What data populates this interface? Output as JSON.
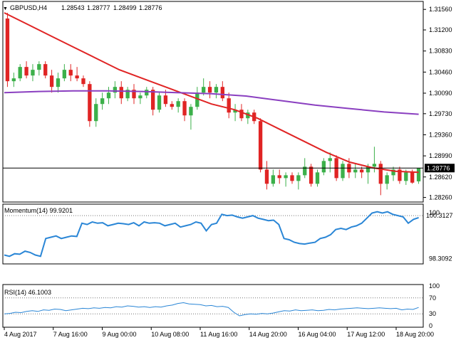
{
  "header": {
    "symbol": "GBPUSD,H4",
    "open": "1.28543",
    "high": "1.28777",
    "low": "1.28499",
    "close": "1.28776"
  },
  "colors": {
    "bull": "#3cb04a",
    "bear": "#e02424",
    "sma_fast": "#e02424",
    "sma_slow": "#8a3fc0",
    "indicator": "#2a86d6",
    "axis": "#000000",
    "grid_dotted": "#777777",
    "price_line": "#000000",
    "price_tag_bg": "#000000",
    "price_tag_text": "#ffffff"
  },
  "chart_data": [
    {
      "type": "candlestick",
      "title": "GBPUSD,H4",
      "x_ticks": [
        "4 Aug 2017",
        "7 Aug 16:00",
        "9 Aug 00:00",
        "10 Aug 08:00",
        "11 Aug 16:00",
        "14 Aug 20:00",
        "16 Aug 04:00",
        "17 Aug 12:00",
        "18 Aug 20:00"
      ],
      "y_ticks": [
        "1.31560",
        "1.31200",
        "1.30830",
        "1.30460",
        "1.30090",
        "1.29730",
        "1.29360",
        "1.28990",
        "1.28620",
        "1.28260"
      ],
      "ylim": [
        1.2818,
        1.317
      ],
      "current_price": "1.28776",
      "current_price_value": 1.28776,
      "ohlc": [
        [
          1.314,
          1.315,
          1.302,
          1.303
        ],
        [
          1.303,
          1.3045,
          1.302,
          1.3035
        ],
        [
          1.3035,
          1.306,
          1.303,
          1.3055
        ],
        [
          1.3055,
          1.3065,
          1.3035,
          1.304
        ],
        [
          1.304,
          1.306,
          1.303,
          1.305
        ],
        [
          1.305,
          1.3065,
          1.304,
          1.306
        ],
        [
          1.306,
          1.3065,
          1.3035,
          1.304
        ],
        [
          1.304,
          1.305,
          1.301,
          1.302
        ],
        [
          1.302,
          1.3045,
          1.301,
          1.3035
        ],
        [
          1.3035,
          1.306,
          1.303,
          1.305
        ],
        [
          1.305,
          1.306,
          1.303,
          1.304
        ],
        [
          1.304,
          1.3055,
          1.303,
          1.3035
        ],
        [
          1.3035,
          1.304,
          1.302,
          1.3025
        ],
        [
          1.3025,
          1.303,
          1.295,
          1.296
        ],
        [
          1.296,
          1.3,
          1.295,
          1.299
        ],
        [
          1.299,
          1.301,
          1.298,
          1.3
        ],
        [
          1.3,
          1.302,
          1.299,
          1.301
        ],
        [
          1.301,
          1.303,
          1.3,
          1.302
        ],
        [
          1.302,
          1.303,
          1.299,
          1.3
        ],
        [
          1.3,
          1.302,
          1.2995,
          1.3015
        ],
        [
          1.3015,
          1.3025,
          1.299,
          1.3
        ],
        [
          1.3,
          1.301,
          1.299,
          1.3005
        ],
        [
          1.3005,
          1.302,
          1.3,
          1.3015
        ],
        [
          1.3015,
          1.302,
          1.297,
          1.298
        ],
        [
          1.298,
          1.301,
          1.2975,
          1.3005
        ],
        [
          1.3005,
          1.3015,
          1.2985,
          1.299
        ],
        [
          1.299,
          1.2995,
          1.298,
          1.2985
        ],
        [
          1.2985,
          1.3,
          1.2975,
          1.2995
        ],
        [
          1.2995,
          1.3,
          1.296,
          1.297
        ],
        [
          1.297,
          1.299,
          1.2945,
          1.2985
        ],
        [
          1.2985,
          1.302,
          1.298,
          1.301
        ],
        [
          1.301,
          1.3035,
          1.3005,
          1.302
        ],
        [
          1.302,
          1.303,
          1.3,
          1.301
        ],
        [
          1.301,
          1.3025,
          1.3,
          1.302
        ],
        [
          1.302,
          1.303,
          1.2995,
          1.3
        ],
        [
          1.3,
          1.301,
          1.2965,
          1.2975
        ],
        [
          1.2975,
          1.299,
          1.296,
          1.298
        ],
        [
          1.298,
          1.299,
          1.296,
          1.2965
        ],
        [
          1.2965,
          1.298,
          1.2955,
          1.2975
        ],
        [
          1.2975,
          1.298,
          1.2955,
          1.296
        ],
        [
          1.296,
          1.2965,
          1.287,
          1.2875
        ],
        [
          1.2875,
          1.289,
          1.284,
          1.285
        ],
        [
          1.285,
          1.2875,
          1.2845,
          1.2865
        ],
        [
          1.2865,
          1.2875,
          1.285,
          1.286
        ],
        [
          1.286,
          1.287,
          1.2845,
          1.2865
        ],
        [
          1.2865,
          1.287,
          1.285,
          1.2855
        ],
        [
          1.2855,
          1.287,
          1.284,
          1.2865
        ],
        [
          1.2865,
          1.2895,
          1.286,
          1.288
        ],
        [
          1.288,
          1.2885,
          1.2845,
          1.285
        ],
        [
          1.285,
          1.2875,
          1.2845,
          1.287
        ],
        [
          1.287,
          1.2895,
          1.2865,
          1.289
        ],
        [
          1.289,
          1.2905,
          1.287,
          1.2895
        ],
        [
          1.2895,
          1.29,
          1.2855,
          1.286
        ],
        [
          1.286,
          1.289,
          1.2855,
          1.2885
        ],
        [
          1.2885,
          1.2895,
          1.286,
          1.287
        ],
        [
          1.287,
          1.2885,
          1.286,
          1.2875
        ],
        [
          1.2875,
          1.288,
          1.286,
          1.287
        ],
        [
          1.287,
          1.2885,
          1.285,
          1.288
        ],
        [
          1.288,
          1.2915,
          1.287,
          1.2885
        ],
        [
          1.2885,
          1.289,
          1.283,
          1.285
        ],
        [
          1.285,
          1.287,
          1.284,
          1.2865
        ],
        [
          1.2865,
          1.288,
          1.2855,
          1.2875
        ],
        [
          1.2875,
          1.288,
          1.285,
          1.2855
        ],
        [
          1.2855,
          1.2875,
          1.2848,
          1.287
        ],
        [
          1.287,
          1.2875,
          1.285,
          1.2852
        ],
        [
          1.28543,
          1.28777,
          1.28499,
          1.28776
        ]
      ],
      "sma_fast": [
        1.315,
        1.313,
        1.311,
        1.309,
        1.307,
        1.305,
        1.3035,
        1.302,
        1.3005,
        1.299,
        1.298,
        1.2965,
        1.2945,
        1.2925,
        1.2905,
        1.2888,
        1.2878,
        1.2872,
        1.287
      ],
      "sma_slow": [
        1.301,
        1.3012,
        1.3013,
        1.3013,
        1.3012,
        1.301,
        1.3008,
        1.3004,
        1.2996,
        1.2988,
        1.2982,
        1.2976,
        1.2972
      ],
      "series": [
        {
          "name": "",
          "color_key": "sma_fast"
        },
        {
          "name": "",
          "color_key": "sma_slow"
        }
      ]
    },
    {
      "type": "line",
      "title": "Momentum(14) 99.9201",
      "y_ticks": [
        "100.3127",
        "98.3092"
      ],
      "y_ticks_top": [
        "100"
      ],
      "ylim": [
        98.1,
        100.45
      ],
      "reference_level": 100,
      "values": [
        98.45,
        98.4,
        98.5,
        98.48,
        98.6,
        98.55,
        98.45,
        98.4,
        99.1,
        99.15,
        99.2,
        99.1,
        99.15,
        99.2,
        99.18,
        99.7,
        99.65,
        99.75,
        99.7,
        99.72,
        99.6,
        99.65,
        99.7,
        99.68,
        99.65,
        99.72,
        99.6,
        99.75,
        99.7,
        99.72,
        99.7,
        99.6,
        99.65,
        99.7,
        99.55,
        99.6,
        99.65,
        99.75,
        99.7,
        99.4,
        99.65,
        99.7,
        100.05,
        100.0,
        100.02,
        99.95,
        99.9,
        99.95,
        100.0,
        99.9,
        99.85,
        99.8,
        99.82,
        99.65,
        99.1,
        99.05,
        98.95,
        98.9,
        98.88,
        98.92,
        98.95,
        99.1,
        99.15,
        99.25,
        99.45,
        99.5,
        99.45,
        99.55,
        99.6,
        99.7,
        99.9,
        100.1,
        100.15,
        100.1,
        100.15,
        100.05,
        100.0,
        99.95,
        99.7,
        99.85,
        99.92
      ]
    },
    {
      "type": "line",
      "title": "RSI(14) 46.1003",
      "y_ticks": [
        "100",
        "70",
        "30",
        "0"
      ],
      "ylim": [
        0,
        100
      ],
      "levels": [
        70,
        30
      ],
      "values": [
        30,
        31,
        34,
        33,
        36,
        38,
        36,
        40,
        39,
        42,
        41,
        38,
        40,
        42,
        44,
        43,
        45,
        44,
        46,
        45,
        48,
        47,
        50,
        49,
        47,
        48,
        46,
        48,
        47,
        50,
        52,
        56,
        58,
        55,
        54,
        53,
        50,
        51,
        48,
        49,
        46,
        34,
        25,
        28,
        30,
        29,
        31,
        30,
        32,
        35,
        38,
        37,
        40,
        38,
        39,
        40,
        38,
        39,
        41,
        40,
        42,
        43,
        44,
        45,
        44,
        43,
        44,
        45,
        44,
        43,
        44,
        40,
        42,
        41,
        46
      ]
    }
  ]
}
